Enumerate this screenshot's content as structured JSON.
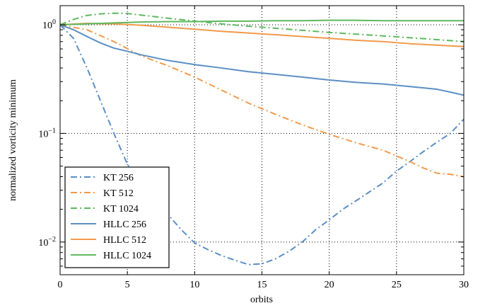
{
  "chart_data": {
    "type": "line",
    "title": "",
    "xlabel": "orbits",
    "ylabel": "normalized vorticity minimum",
    "xlim": [
      0,
      30
    ],
    "ylim": [
      0.005,
      1.5
    ],
    "yscale": "log",
    "grid": "dotted",
    "legend_position": "lower-left",
    "x_ticks": [
      0,
      5,
      10,
      15,
      20,
      25,
      30
    ],
    "x_tick_labels": [
      "0",
      "5",
      "10",
      "15",
      "20",
      "25",
      "30"
    ],
    "y_ticks": [
      1,
      0.1,
      0.01
    ],
    "y_tick_labels": [
      {
        "base": "10",
        "exp": "0"
      },
      {
        "base": "10",
        "exp": "−1"
      },
      {
        "base": "10",
        "exp": "−2"
      }
    ],
    "series": [
      {
        "name": "KT 256",
        "color": "#5b8fc4",
        "style": "dashdot",
        "x": [
          0,
          1,
          2,
          3,
          4,
          5,
          6,
          7,
          8,
          9,
          10,
          11,
          12,
          13,
          14,
          15,
          16,
          17,
          18,
          19,
          20,
          21,
          22,
          23,
          24,
          25,
          26,
          27,
          28,
          29,
          30
        ],
        "y": [
          1.0,
          0.75,
          0.4,
          0.2,
          0.1,
          0.052,
          0.035,
          0.025,
          0.018,
          0.013,
          0.0098,
          0.0085,
          0.0075,
          0.0068,
          0.0062,
          0.0063,
          0.007,
          0.0082,
          0.01,
          0.013,
          0.016,
          0.02,
          0.024,
          0.029,
          0.035,
          0.045,
          0.055,
          0.068,
          0.083,
          0.1,
          0.135
        ]
      },
      {
        "name": "KT 512",
        "color": "#f29a4a",
        "style": "dashdot",
        "x": [
          0,
          2,
          4,
          6,
          8,
          10,
          12,
          14,
          16,
          18,
          20,
          22,
          24,
          26,
          27,
          28,
          29,
          30
        ],
        "y": [
          1.0,
          0.9,
          0.7,
          0.52,
          0.42,
          0.33,
          0.25,
          0.19,
          0.15,
          0.12,
          0.098,
          0.082,
          0.07,
          0.055,
          0.048,
          0.043,
          0.042,
          0.04
        ]
      },
      {
        "name": "KT 1024",
        "color": "#5fb85f",
        "style": "dashdot",
        "x": [
          0,
          1,
          2,
          3,
          4,
          5,
          6,
          8,
          10,
          12,
          14,
          16,
          18,
          20,
          22,
          24,
          26,
          28,
          30
        ],
        "y": [
          1.0,
          1.12,
          1.22,
          1.26,
          1.28,
          1.27,
          1.23,
          1.15,
          1.08,
          1.02,
          0.97,
          0.93,
          0.89,
          0.85,
          0.82,
          0.79,
          0.76,
          0.73,
          0.7
        ]
      },
      {
        "name": "HLLC 256",
        "color": "#5b8fc4",
        "style": "solid",
        "x": [
          0,
          1,
          2,
          3,
          4,
          5,
          6,
          8,
          10,
          12,
          14,
          16,
          18,
          20,
          22,
          24,
          26,
          28,
          29,
          30
        ],
        "y": [
          1.0,
          0.9,
          0.78,
          0.68,
          0.61,
          0.57,
          0.53,
          0.47,
          0.43,
          0.4,
          0.37,
          0.35,
          0.33,
          0.31,
          0.295,
          0.285,
          0.27,
          0.255,
          0.24,
          0.225
        ]
      },
      {
        "name": "HLLC 512",
        "color": "#f29a4a",
        "style": "solid",
        "x": [
          0,
          2,
          4,
          6,
          8,
          10,
          12,
          14,
          16,
          18,
          20,
          22,
          24,
          26,
          28,
          30
        ],
        "y": [
          1.0,
          1.03,
          1.02,
          0.99,
          0.95,
          0.91,
          0.87,
          0.84,
          0.81,
          0.78,
          0.75,
          0.72,
          0.7,
          0.67,
          0.65,
          0.63
        ]
      },
      {
        "name": "HLLC 1024",
        "color": "#5fb85f",
        "style": "solid",
        "x": [
          0,
          2,
          4,
          6,
          8,
          10,
          12,
          14,
          16,
          18,
          20,
          22,
          24,
          26,
          28,
          30
        ],
        "y": [
          1.0,
          1.02,
          1.04,
          1.06,
          1.07,
          1.07,
          1.08,
          1.08,
          1.09,
          1.09,
          1.1,
          1.1,
          1.09,
          1.09,
          1.09,
          1.09
        ]
      }
    ]
  }
}
